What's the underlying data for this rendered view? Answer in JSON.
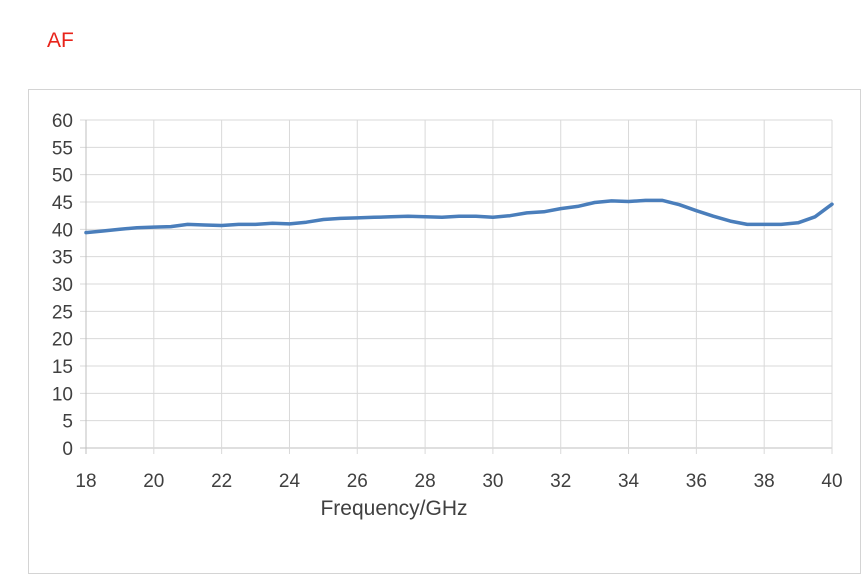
{
  "chart_data": {
    "type": "line",
    "title": "AF",
    "xlabel": "Frequency/GHz",
    "ylabel": "",
    "xlim": [
      18,
      40
    ],
    "ylim": [
      0,
      60
    ],
    "xticks": [
      18,
      20,
      22,
      24,
      26,
      28,
      30,
      32,
      34,
      36,
      38,
      40
    ],
    "yticks": [
      0,
      5,
      10,
      15,
      20,
      25,
      30,
      35,
      40,
      45,
      50,
      55,
      60
    ],
    "grid": true,
    "legend": "none",
    "line_color": "#4a7ebb",
    "series": [
      {
        "x": [
          18,
          18.5,
          19,
          19.5,
          20,
          20.5,
          21,
          21.5,
          22,
          22.5,
          23,
          23.5,
          24,
          24.5,
          25,
          25.5,
          26,
          26.5,
          27,
          27.5,
          28,
          28.5,
          29,
          29.5,
          30,
          30.5,
          31,
          31.5,
          32,
          32.5,
          33,
          33.5,
          34,
          34.5,
          35,
          35.5,
          36,
          36.5,
          37,
          37.5,
          38,
          38.5,
          39,
          39.5,
          40
        ],
        "values": [
          39.4,
          39.7,
          40.0,
          40.3,
          40.4,
          40.5,
          40.9,
          40.8,
          40.7,
          40.9,
          40.9,
          41.1,
          41.0,
          41.3,
          41.8,
          42.0,
          42.1,
          42.2,
          42.3,
          42.4,
          42.3,
          42.2,
          42.4,
          42.4,
          42.2,
          42.5,
          43.0,
          43.2,
          43.8,
          44.2,
          44.9,
          45.2,
          45.1,
          45.3,
          45.3,
          44.5,
          43.4,
          42.4,
          41.5,
          40.9,
          40.9,
          40.9,
          41.2,
          42.3,
          44.6
        ]
      }
    ]
  }
}
